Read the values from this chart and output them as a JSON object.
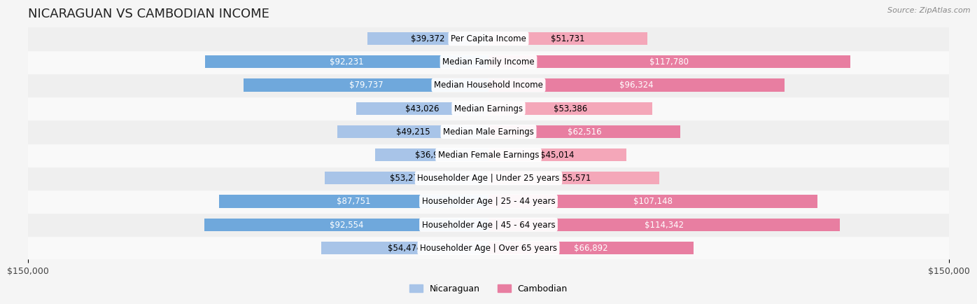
{
  "title": "NICARAGUAN VS CAMBODIAN INCOME",
  "source": "Source: ZipAtlas.com",
  "categories": [
    "Per Capita Income",
    "Median Family Income",
    "Median Household Income",
    "Median Earnings",
    "Median Male Earnings",
    "Median Female Earnings",
    "Householder Age | Under 25 years",
    "Householder Age | 25 - 44 years",
    "Householder Age | 45 - 64 years",
    "Householder Age | Over 65 years"
  ],
  "nicaraguan_values": [
    39372,
    92231,
    79737,
    43026,
    49215,
    36904,
    53275,
    87751,
    92554,
    54474
  ],
  "cambodian_values": [
    51731,
    117780,
    96324,
    53386,
    62516,
    45014,
    55571,
    107148,
    114342,
    66892
  ],
  "max_value": 150000,
  "nicaraguan_color_light": "#a8c4e8",
  "nicaraguan_color_dark": "#6fa8dc",
  "cambodian_color_light": "#f4a7b9",
  "cambodian_color_dark": "#e87ea1",
  "bar_height": 0.55,
  "background_color": "#f5f5f5",
  "row_bg_light": "#f9f9f9",
  "row_bg_dark": "#efefef",
  "label_fontsize": 8.5,
  "title_fontsize": 13,
  "value_label_dark_threshold": 60000
}
